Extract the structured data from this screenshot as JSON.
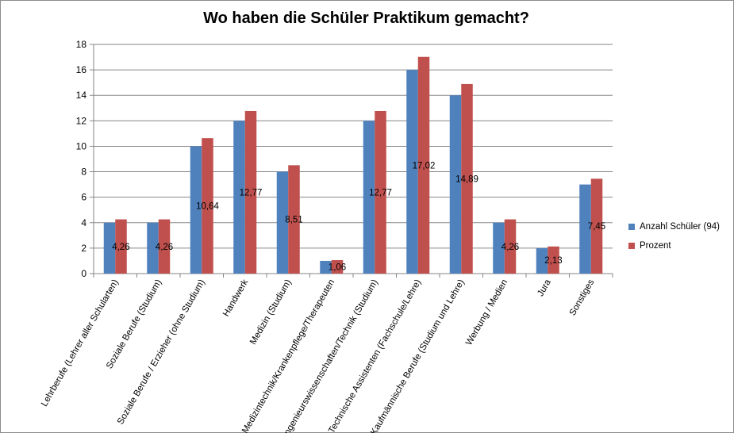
{
  "chart_data": {
    "type": "bar",
    "title": "Wo haben die Schüler Praktikum gemacht?",
    "categories": [
      "Lehrberufe (Lehrer aller Schularten)",
      "Soziale Berufe (Studium)",
      "Soziale Berufe / Erzieher (ohne Studium)",
      "Handwerk",
      "Medizin (Studium)",
      "Medizintechnik/Krankenpflege/Therapeuten",
      "Ingenieurswissenschaften/Technik (Studium)",
      "Technische Assistenten (Fachschule/Lehre)",
      "Kaufmännische Berufe (Studium und Lehre)",
      "Werbung / Medien",
      "Jura",
      "Sonstiges"
    ],
    "series": [
      {
        "name": "Anzahl Schüler (94)",
        "values": [
          4,
          4,
          10,
          12,
          8,
          1,
          12,
          16,
          14,
          4,
          2,
          7
        ],
        "color": "#4f81bd"
      },
      {
        "name": "Prozent",
        "values": [
          4.26,
          4.26,
          10.64,
          12.77,
          8.51,
          1.06,
          12.77,
          17.02,
          14.89,
          4.26,
          2.13,
          7.45
        ],
        "color": "#c0504d"
      }
    ],
    "data_labels": [
      "4,26",
      "4,26",
      "10,64",
      "12,77",
      "8,51",
      "1,06",
      "12,77",
      "17,02",
      "14,89",
      "4,26",
      "2,13",
      "7,45"
    ],
    "yticks": [
      "0",
      "2",
      "4",
      "6",
      "8",
      "10",
      "12",
      "14",
      "16",
      "18"
    ],
    "ylim": [
      0,
      18
    ],
    "grid": true,
    "legend_position": "right"
  }
}
